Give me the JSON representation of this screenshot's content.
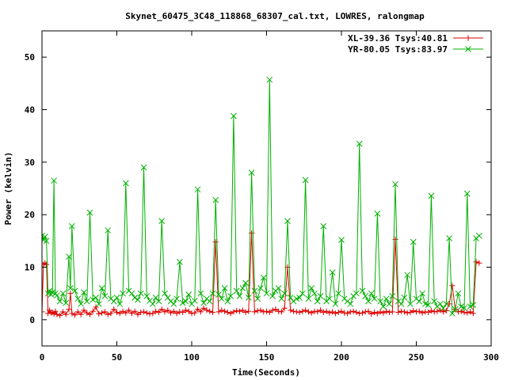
{
  "chart_data": {
    "type": "line",
    "title": "Skynet_60475_3C48_118868_68307_cal.txt, LOWRES, ralongmap",
    "xlabel": "Time(Seconds)",
    "ylabel": "Power (kelvin)",
    "xlim": [
      0,
      300
    ],
    "ylim": [
      -5,
      55
    ],
    "xticks": [
      0,
      50,
      100,
      150,
      200,
      250,
      300
    ],
    "yticks": [
      0,
      10,
      20,
      30,
      40,
      50
    ],
    "grid": false,
    "legend_position": "top-right",
    "series": [
      {
        "name": "XL-39.36 Tsys:40.81",
        "color": "#e00000",
        "marker": "plus",
        "x": [
          0,
          1,
          2,
          3,
          4,
          5,
          6,
          7,
          8,
          9,
          10,
          12,
          14,
          16,
          18,
          19,
          20,
          22,
          24,
          26,
          28,
          30,
          32,
          34,
          36,
          38,
          40,
          42,
          44,
          46,
          48,
          50,
          52,
          54,
          56,
          58,
          60,
          62,
          64,
          66,
          68,
          70,
          72,
          74,
          76,
          78,
          80,
          82,
          84,
          86,
          88,
          90,
          92,
          94,
          96,
          98,
          100,
          102,
          104,
          106,
          108,
          110,
          112,
          114,
          116,
          118,
          120,
          122,
          124,
          126,
          128,
          130,
          132,
          134,
          136,
          138,
          140,
          142,
          144,
          146,
          148,
          150,
          152,
          154,
          156,
          158,
          160,
          162,
          164,
          166,
          168,
          170,
          172,
          174,
          176,
          178,
          180,
          182,
          184,
          186,
          188,
          190,
          192,
          194,
          196,
          198,
          200,
          202,
          204,
          206,
          208,
          210,
          212,
          214,
          216,
          218,
          220,
          222,
          224,
          226,
          228,
          230,
          232,
          234,
          236,
          238,
          240,
          242,
          244,
          246,
          248,
          250,
          252,
          254,
          256,
          258,
          260,
          262,
          264,
          266,
          268,
          270,
          272,
          274,
          276,
          278,
          280,
          282,
          284,
          286,
          288,
          290,
          292
        ],
        "values": [
          1.5,
          10.5,
          10.8,
          10.5,
          1.2,
          1.8,
          1.3,
          1.4,
          1.1,
          1.6,
          1.0,
          0.8,
          1.5,
          1.0,
          2.0,
          5.0,
          1.2,
          0.9,
          1.5,
          1.0,
          1.8,
          1.3,
          1.0,
          1.6,
          2.4,
          1.1,
          1.3,
          1.5,
          1.0,
          1.2,
          2.0,
          1.4,
          1.2,
          1.6,
          1.3,
          1.8,
          1.2,
          1.6,
          1.0,
          1.4,
          1.5,
          1.3,
          1.1,
          1.2,
          1.6,
          1.4,
          2.0,
          1.5,
          1.8,
          1.3,
          1.6,
          1.2,
          1.5,
          1.4,
          1.8,
          1.6,
          1.2,
          1.3,
          2.0,
          1.5,
          2.2,
          1.8,
          1.6,
          1.4,
          14.8,
          1.5,
          1.8,
          1.6,
          1.4,
          1.2,
          1.5,
          1.7,
          1.6,
          1.8,
          1.4,
          1.6,
          16.5,
          1.5,
          1.7,
          1.8,
          1.5,
          1.6,
          1.4,
          1.8,
          2.0,
          1.6,
          1.5,
          2.2,
          10.0,
          1.8,
          1.6,
          1.5,
          1.4,
          1.6,
          1.8,
          1.5,
          1.3,
          1.6,
          1.5,
          1.8,
          1.4,
          1.6,
          1.3,
          1.5,
          1.2,
          1.4,
          1.6,
          1.3,
          1.2,
          1.5,
          1.6,
          1.4,
          1.2,
          1.3,
          1.5,
          1.6,
          1.1,
          1.4,
          1.2,
          1.5,
          1.3,
          1.6,
          1.4,
          1.5,
          15.3,
          1.4,
          1.6,
          1.5,
          1.3,
          1.4,
          1.7,
          1.5,
          1.6,
          1.3,
          1.5,
          1.4,
          1.7,
          1.5,
          1.6,
          1.8,
          1.5,
          1.7,
          3.0,
          6.5,
          2.0,
          1.5,
          1.6,
          1.4,
          1.3,
          1.5,
          1.2,
          11.0,
          10.8
        ]
      },
      {
        "name": "YR-80.05 Tsys:83.97",
        "color": "#00b000",
        "marker": "cross",
        "x": [
          0,
          1,
          2,
          3,
          4,
          5,
          6,
          7,
          8,
          9,
          10,
          12,
          14,
          16,
          18,
          19,
          20,
          22,
          24,
          26,
          28,
          30,
          32,
          34,
          36,
          38,
          40,
          42,
          44,
          46,
          48,
          50,
          52,
          54,
          56,
          58,
          60,
          62,
          64,
          66,
          68,
          70,
          72,
          74,
          76,
          78,
          80,
          82,
          84,
          86,
          88,
          90,
          92,
          94,
          96,
          98,
          100,
          102,
          104,
          106,
          108,
          110,
          112,
          114,
          116,
          118,
          120,
          122,
          124,
          126,
          128,
          130,
          132,
          134,
          136,
          138,
          140,
          142,
          144,
          146,
          148,
          150,
          152,
          154,
          156,
          158,
          160,
          162,
          164,
          166,
          168,
          170,
          172,
          174,
          176,
          178,
          180,
          182,
          184,
          186,
          188,
          190,
          192,
          194,
          196,
          198,
          200,
          202,
          204,
          206,
          208,
          210,
          212,
          214,
          216,
          218,
          220,
          222,
          224,
          226,
          228,
          230,
          232,
          234,
          236,
          238,
          240,
          242,
          244,
          246,
          248,
          250,
          252,
          254,
          256,
          258,
          260,
          262,
          264,
          266,
          268,
          270,
          272,
          274,
          276,
          278,
          280,
          282,
          284,
          286,
          288,
          290,
          292
        ],
        "values": [
          16.0,
          15.2,
          15.8,
          15.0,
          5.0,
          5.5,
          4.8,
          5.2,
          26.5,
          5.0,
          4.6,
          3.5,
          5.0,
          3.2,
          12.0,
          6.0,
          17.8,
          5.5,
          4.0,
          3.0,
          5.2,
          3.5,
          20.4,
          3.8,
          4.2,
          3.0,
          6.0,
          4.5,
          17.0,
          4.0,
          3.5,
          4.2,
          3.0,
          5.0,
          26.0,
          5.5,
          5.0,
          4.2,
          3.8,
          5.0,
          29.0,
          4.5,
          3.6,
          3.0,
          4.2,
          3.5,
          18.8,
          5.0,
          4.2,
          3.5,
          3.0,
          4.0,
          11.0,
          3.2,
          3.5,
          4.8,
          3.0,
          3.6,
          24.8,
          5.0,
          3.2,
          4.0,
          3.5,
          5.0,
          22.8,
          4.8,
          4.0,
          6.0,
          3.5,
          4.5,
          38.8,
          5.5,
          4.5,
          6.0,
          7.0,
          4.2,
          28.0,
          5.5,
          4.0,
          6.0,
          8.0,
          5.0,
          45.7,
          4.5,
          5.5,
          6.0,
          4.0,
          5.0,
          18.8,
          4.2,
          3.5,
          4.0,
          4.2,
          5.0,
          26.6,
          4.0,
          6.0,
          5.0,
          3.5,
          4.5,
          17.8,
          3.5,
          4.0,
          9.0,
          3.0,
          5.0,
          15.2,
          4.0,
          3.5,
          3.0,
          4.5,
          5.0,
          33.5,
          5.5,
          4.5,
          3.5,
          5.0,
          4.0,
          20.2,
          3.5,
          2.5,
          4.0,
          3.0,
          4.5,
          25.8,
          3.5,
          3.0,
          4.2,
          8.5,
          3.0,
          14.8,
          4.0,
          3.5,
          5.0,
          3.0,
          2.8,
          23.6,
          3.5,
          2.5,
          3.0,
          2.2,
          3.0,
          15.5,
          1.2,
          2.0,
          5.0,
          2.5,
          2.2,
          24.0,
          2.5,
          2.8,
          15.5,
          16.0
        ]
      }
    ]
  }
}
